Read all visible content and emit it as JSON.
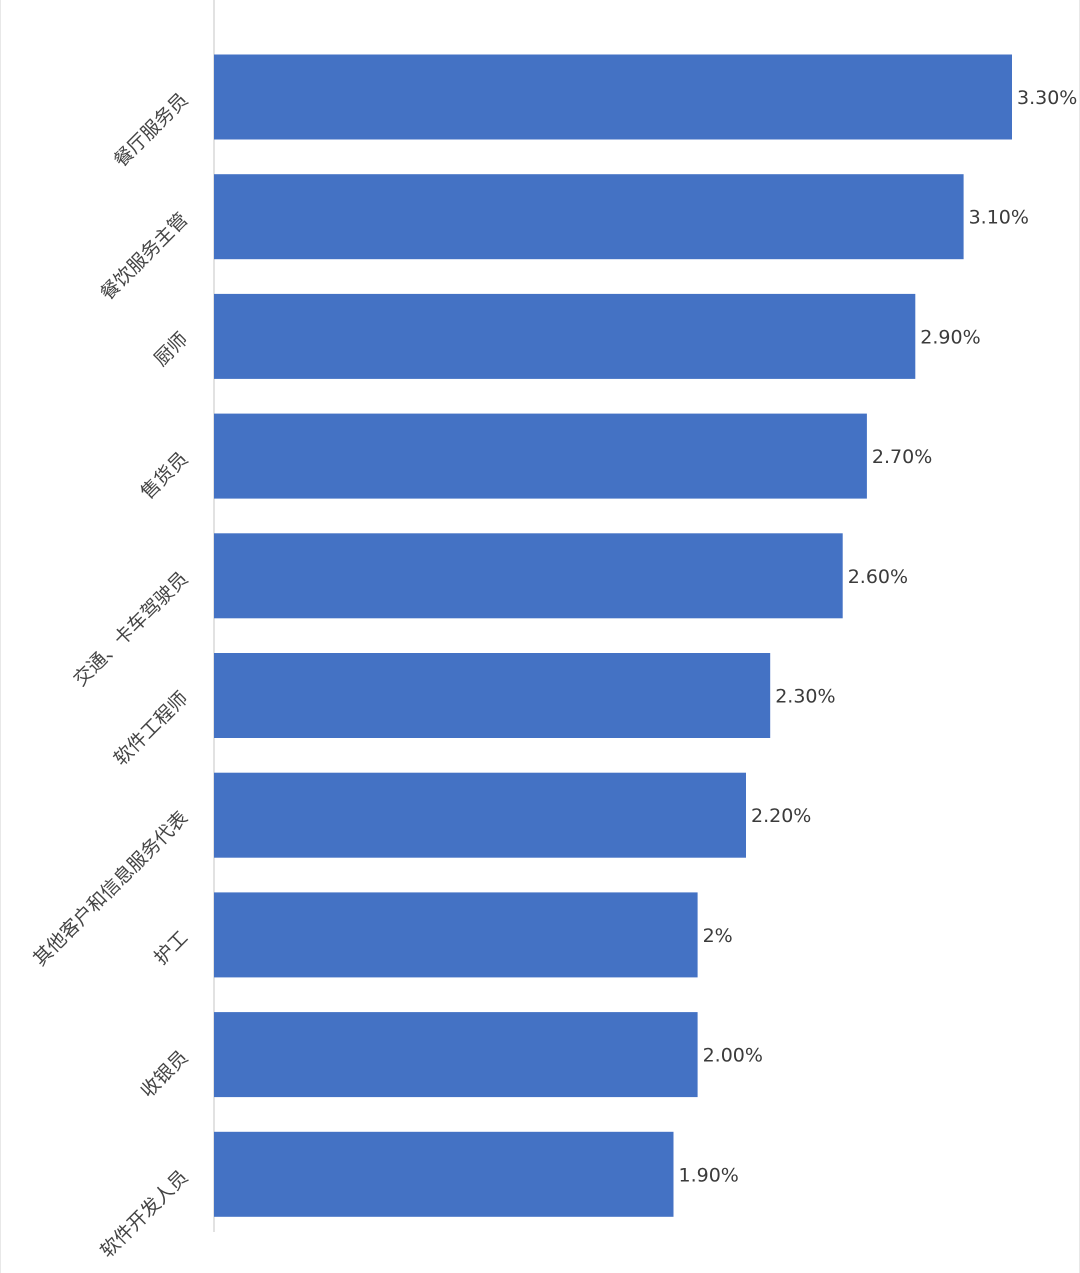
{
  "chart_data": {
    "type": "bar",
    "orientation": "horizontal",
    "title": "",
    "xlabel": "",
    "ylabel": "",
    "categories": [
      "餐厅服务员",
      "餐饮服务主管",
      "厨师",
      "售货员",
      "交通、卡车驾驶员",
      "软件工程师",
      "其他客户和信息服务代表",
      "护工",
      "收银员",
      "软件开发人员"
    ],
    "values": [
      3.3,
      3.1,
      2.9,
      2.7,
      2.6,
      2.3,
      2.2,
      2.0,
      2.0,
      1.9
    ],
    "data_labels": [
      "3.30%",
      "3.10%",
      "2.90%",
      "2.70%",
      "2.60%",
      "2.30%",
      "2.20%",
      "2%",
      "2.00%",
      "1.90%"
    ],
    "xlim": [
      0,
      3.3
    ],
    "bar_color": "#4472c4",
    "axis_color": "#d9d9d9",
    "grid": false,
    "legend": "none"
  }
}
